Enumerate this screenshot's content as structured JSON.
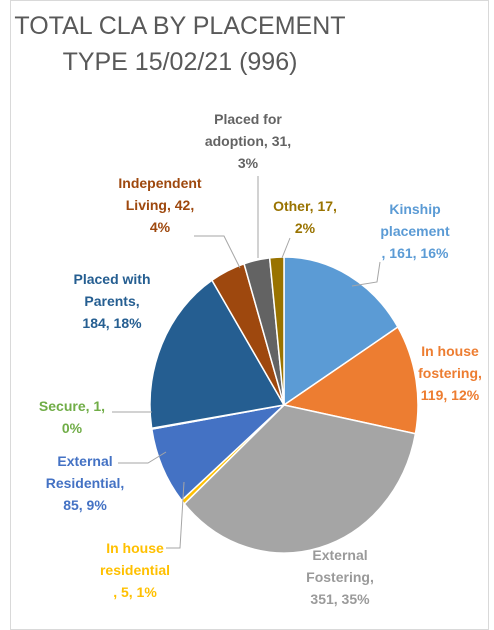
{
  "chart_data": {
    "type": "pie",
    "title": "TOTAL CLA BY PLACEMENT TYPE 15/02/21 (996)",
    "categories": [
      "Kinship placement",
      "In house fostering",
      "External Fostering",
      "In house residential",
      "External Residential",
      "Secure",
      "Placed with Parents",
      "Independent Living",
      "Placed for adoption",
      "Other"
    ],
    "values": [
      161,
      119,
      351,
      5,
      85,
      1,
      184,
      42,
      31,
      17
    ],
    "value_labels": [
      "161, 16%",
      "119, 12%",
      "351, 35%",
      "5, 1%",
      "85, 9%",
      "1, 0%",
      "184, 18%",
      "42, 4%",
      "31, 3%",
      "17, 2%"
    ],
    "colors": [
      "#5B9BD5",
      "#ED7D31",
      "#A5A5A5",
      "#FFC000",
      "#4472C4",
      "#70AD47",
      "#255E91",
      "#9E480E",
      "#636363",
      "#997300"
    ]
  }
}
